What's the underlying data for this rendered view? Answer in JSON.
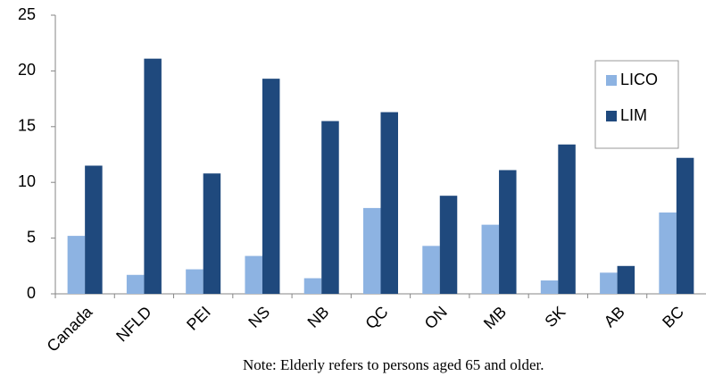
{
  "chart_data": {
    "type": "bar",
    "categories": [
      "Canada",
      "NFLD",
      "PEI",
      "NS",
      "NB",
      "QC",
      "ON",
      "MB",
      "SK",
      "AB",
      "BC"
    ],
    "series": [
      {
        "name": "LICO",
        "color": "#8db3e2",
        "values": [
          5.2,
          1.7,
          2.2,
          3.4,
          1.4,
          7.7,
          4.3,
          6.2,
          1.2,
          1.9,
          7.3
        ]
      },
      {
        "name": "LIM",
        "color": "#1f497d",
        "values": [
          11.5,
          21.1,
          10.8,
          19.3,
          15.5,
          16.3,
          8.8,
          11.1,
          13.4,
          2.5,
          12.2
        ]
      }
    ],
    "ylim": [
      0,
      25
    ],
    "yticks": [
      0,
      5,
      10,
      15,
      20,
      25
    ],
    "grid": false,
    "legend": "right",
    "note": "Note: Elderly refers to persons aged 65 and older."
  }
}
